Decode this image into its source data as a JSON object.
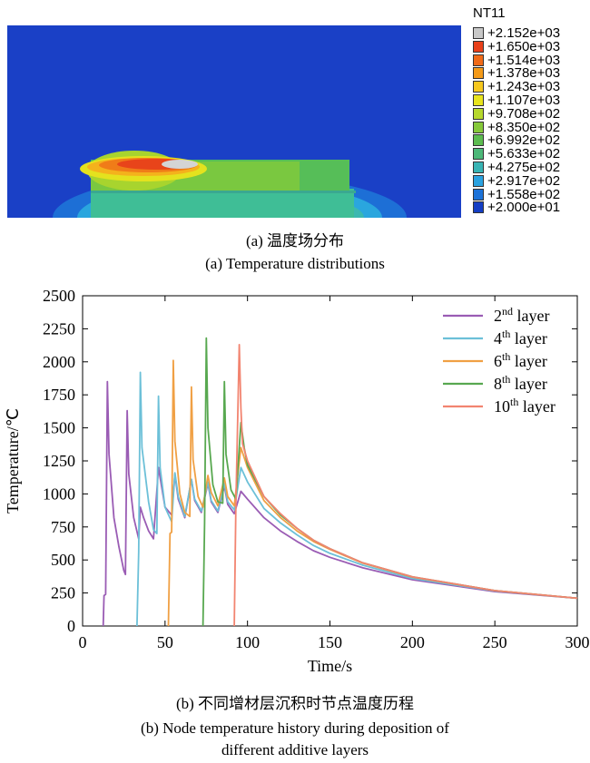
{
  "contour": {
    "legend_title": "NT11",
    "legend": [
      {
        "label": "+2.152e+03",
        "color": "#c8c8c8"
      },
      {
        "label": "+1.650e+03",
        "color": "#e8401a"
      },
      {
        "label": "+1.514e+03",
        "color": "#f06a18"
      },
      {
        "label": "+1.378e+03",
        "color": "#f49a18"
      },
      {
        "label": "+1.243e+03",
        "color": "#f6c81e"
      },
      {
        "label": "+1.107e+03",
        "color": "#e8e41c"
      },
      {
        "label": "+9.708e+02",
        "color": "#b6d82c"
      },
      {
        "label": "+8.350e+02",
        "color": "#86c93a"
      },
      {
        "label": "+6.992e+02",
        "color": "#5cbc50"
      },
      {
        "label": "+5.633e+02",
        "color": "#4cb878"
      },
      {
        "label": "+4.275e+02",
        "color": "#38b4b4"
      },
      {
        "label": "+2.917e+02",
        "color": "#2aa2e0"
      },
      {
        "label": "+1.558e+02",
        "color": "#1c72d8"
      },
      {
        "label": "+2.000e+01",
        "color": "#143ec4"
      }
    ]
  },
  "captions": {
    "a_cn": "(a)  温度场分布",
    "a_en": "(a)  Temperature distributions",
    "b_cn": "(b)  不同增材层沉积时节点温度历程",
    "b_en_1": "(b)  Node temperature history during deposition of",
    "b_en_2": "different additive layers"
  },
  "chart_data": {
    "type": "line",
    "xlabel": "Time/s",
    "ylabel": "Temperature/℃",
    "xlim": [
      0,
      300
    ],
    "ylim": [
      0,
      2500
    ],
    "xticks": [
      0,
      50,
      100,
      150,
      200,
      250,
      300
    ],
    "yticks": [
      0,
      250,
      500,
      750,
      1000,
      1250,
      1500,
      1750,
      2000,
      2250,
      2500
    ],
    "legend_position": "top-right",
    "series": [
      {
        "base": "2",
        "sup": "nd",
        "suffix": " layer",
        "color": "#9a5cb4",
        "points": [
          [
            12.5,
            0
          ],
          [
            13,
            230
          ],
          [
            14,
            240
          ],
          [
            15,
            1850
          ],
          [
            16,
            1300
          ],
          [
            19,
            820
          ],
          [
            22,
            600
          ],
          [
            25,
            420
          ],
          [
            26,
            390
          ],
          [
            27,
            1630
          ],
          [
            28,
            1150
          ],
          [
            31,
            820
          ],
          [
            34,
            660
          ],
          [
            35,
            900
          ],
          [
            37,
            820
          ],
          [
            40,
            720
          ],
          [
            43,
            660
          ],
          [
            46,
            1200
          ],
          [
            50,
            900
          ],
          [
            54,
            840
          ],
          [
            56,
            1150
          ],
          [
            58,
            960
          ],
          [
            62,
            820
          ],
          [
            66,
            1110
          ],
          [
            68,
            950
          ],
          [
            72,
            860
          ],
          [
            76,
            1080
          ],
          [
            78,
            940
          ],
          [
            82,
            860
          ],
          [
            86,
            1060
          ],
          [
            88,
            920
          ],
          [
            92,
            850
          ],
          [
            96,
            1020
          ],
          [
            100,
            960
          ],
          [
            110,
            820
          ],
          [
            120,
            720
          ],
          [
            130,
            640
          ],
          [
            140,
            570
          ],
          [
            150,
            520
          ],
          [
            170,
            440
          ],
          [
            200,
            350
          ],
          [
            250,
            260
          ],
          [
            300,
            210
          ]
        ]
      },
      {
        "base": "4",
        "sup": "th",
        "suffix": " layer",
        "color": "#6cc0d8",
        "points": [
          [
            33,
            0
          ],
          [
            34,
            560
          ],
          [
            35,
            1920
          ],
          [
            36,
            1350
          ],
          [
            40,
            940
          ],
          [
            43,
            730
          ],
          [
            45,
            700
          ],
          [
            46,
            1740
          ],
          [
            47,
            1200
          ],
          [
            50,
            900
          ],
          [
            54,
            790
          ],
          [
            56,
            1160
          ],
          [
            58,
            980
          ],
          [
            62,
            830
          ],
          [
            66,
            1110
          ],
          [
            68,
            960
          ],
          [
            72,
            870
          ],
          [
            76,
            1090
          ],
          [
            78,
            950
          ],
          [
            82,
            870
          ],
          [
            86,
            1080
          ],
          [
            88,
            940
          ],
          [
            92,
            880
          ],
          [
            96,
            1200
          ],
          [
            100,
            1090
          ],
          [
            110,
            890
          ],
          [
            120,
            780
          ],
          [
            130,
            690
          ],
          [
            140,
            610
          ],
          [
            150,
            550
          ],
          [
            170,
            460
          ],
          [
            200,
            360
          ],
          [
            250,
            265
          ],
          [
            300,
            210
          ]
        ]
      },
      {
        "base": "6",
        "sup": "th",
        "suffix": " layer",
        "color": "#f0a044",
        "points": [
          [
            52,
            0
          ],
          [
            53,
            700
          ],
          [
            54,
            710
          ],
          [
            55,
            2010
          ],
          [
            56,
            1400
          ],
          [
            59,
            1000
          ],
          [
            62,
            860
          ],
          [
            65,
            830
          ],
          [
            66,
            1810
          ],
          [
            67,
            1260
          ],
          [
            70,
            980
          ],
          [
            73,
            900
          ],
          [
            76,
            1140
          ],
          [
            78,
            1010
          ],
          [
            82,
            910
          ],
          [
            86,
            1120
          ],
          [
            88,
            980
          ],
          [
            92,
            910
          ],
          [
            96,
            1350
          ],
          [
            100,
            1200
          ],
          [
            110,
            950
          ],
          [
            120,
            820
          ],
          [
            130,
            720
          ],
          [
            140,
            640
          ],
          [
            150,
            580
          ],
          [
            170,
            475
          ],
          [
            200,
            370
          ],
          [
            250,
            268
          ],
          [
            300,
            210
          ]
        ]
      },
      {
        "base": "8",
        "sup": "th",
        "suffix": " layer",
        "color": "#58a850",
        "points": [
          [
            73,
            0
          ],
          [
            74,
            780
          ],
          [
            75,
            2180
          ],
          [
            76,
            1500
          ],
          [
            79,
            1070
          ],
          [
            82,
            940
          ],
          [
            85,
            930
          ],
          [
            86,
            1850
          ],
          [
            87,
            1300
          ],
          [
            90,
            1030
          ],
          [
            93,
            960
          ],
          [
            96,
            1540
          ],
          [
            98,
            1350
          ],
          [
            100,
            1220
          ],
          [
            110,
            980
          ],
          [
            120,
            840
          ],
          [
            130,
            740
          ],
          [
            140,
            650
          ],
          [
            150,
            585
          ],
          [
            170,
            478
          ],
          [
            200,
            372
          ],
          [
            250,
            268
          ],
          [
            300,
            210
          ]
        ]
      },
      {
        "base": "10",
        "sup": "th",
        "suffix": " layer",
        "color": "#f28470",
        "points": [
          [
            92,
            0
          ],
          [
            93,
            930
          ],
          [
            95,
            2130
          ],
          [
            96,
            1650
          ],
          [
            97,
            1380
          ],
          [
            100,
            1250
          ],
          [
            110,
            980
          ],
          [
            120,
            850
          ],
          [
            130,
            740
          ],
          [
            140,
            650
          ],
          [
            150,
            585
          ],
          [
            170,
            478
          ],
          [
            200,
            372
          ],
          [
            250,
            268
          ],
          [
            300,
            210
          ]
        ]
      }
    ]
  }
}
